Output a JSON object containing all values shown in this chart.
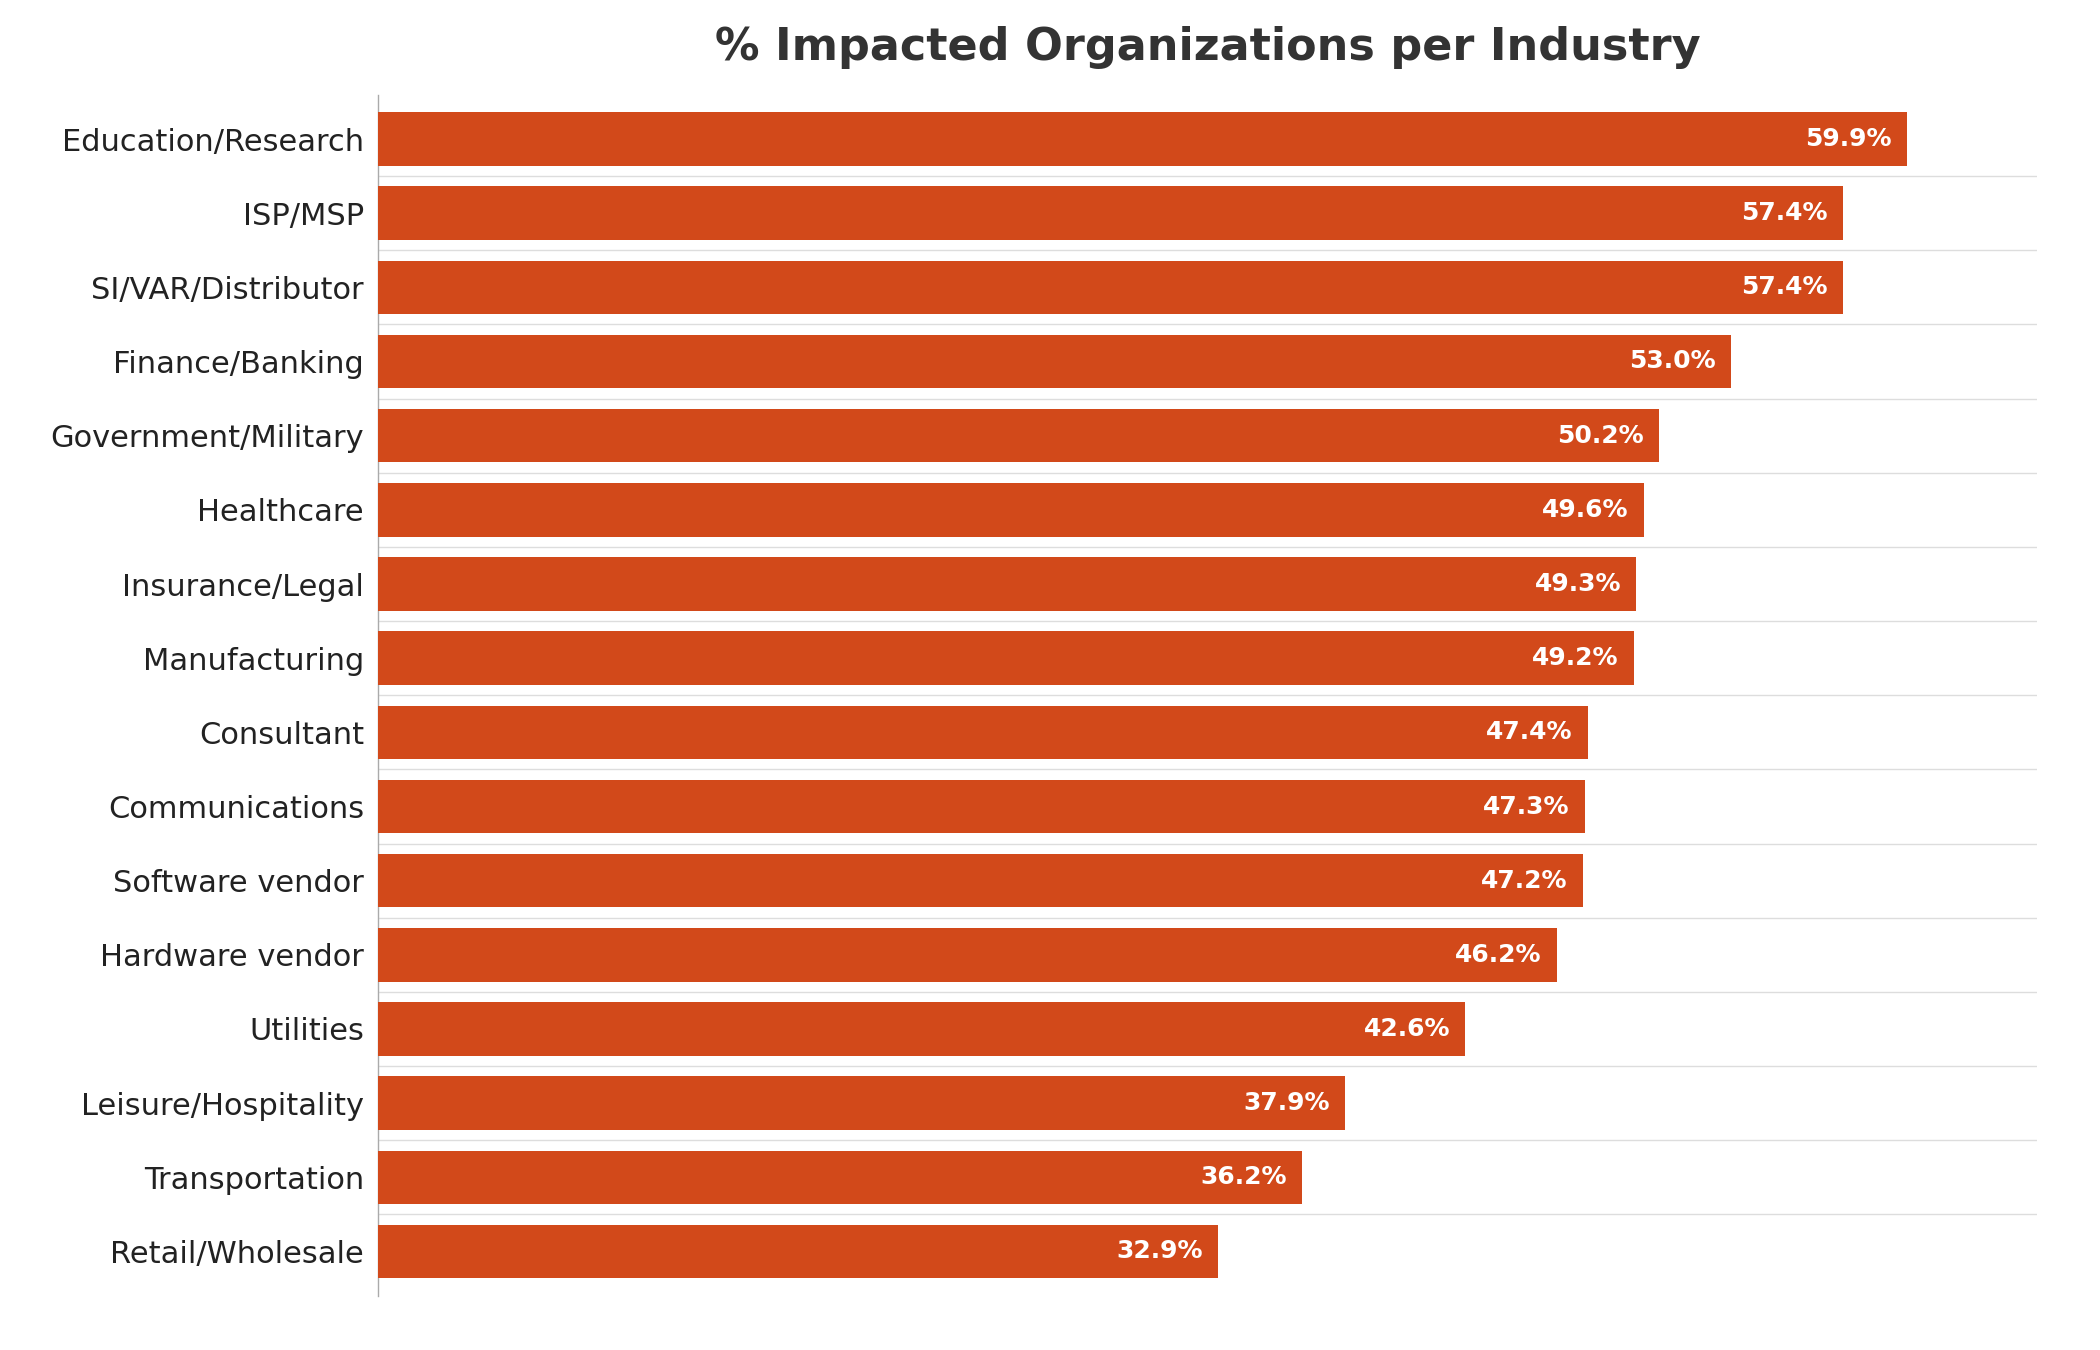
{
  "title": "% Impacted Organizations per Industry",
  "categories": [
    "Retail/Wholesale",
    "Transportation",
    "Leisure/Hospitality",
    "Utilities",
    "Hardware vendor",
    "Software vendor",
    "Communications",
    "Consultant",
    "Manufacturing",
    "Insurance/Legal",
    "Healthcare",
    "Government/Military",
    "Finance/Banking",
    "SI/VAR/Distributor",
    "ISP/MSP",
    "Education/Research"
  ],
  "values": [
    32.9,
    36.2,
    37.9,
    42.6,
    46.2,
    47.2,
    47.3,
    47.4,
    49.2,
    49.3,
    49.6,
    50.2,
    53.0,
    57.4,
    57.4,
    59.9
  ],
  "bar_color": "#D2491A",
  "label_color": "#ffffff",
  "background_color": "#ffffff",
  "title_fontsize": 32,
  "label_fontsize": 18,
  "tick_fontsize": 22,
  "xlim": [
    0,
    65
  ],
  "bar_height": 0.72
}
